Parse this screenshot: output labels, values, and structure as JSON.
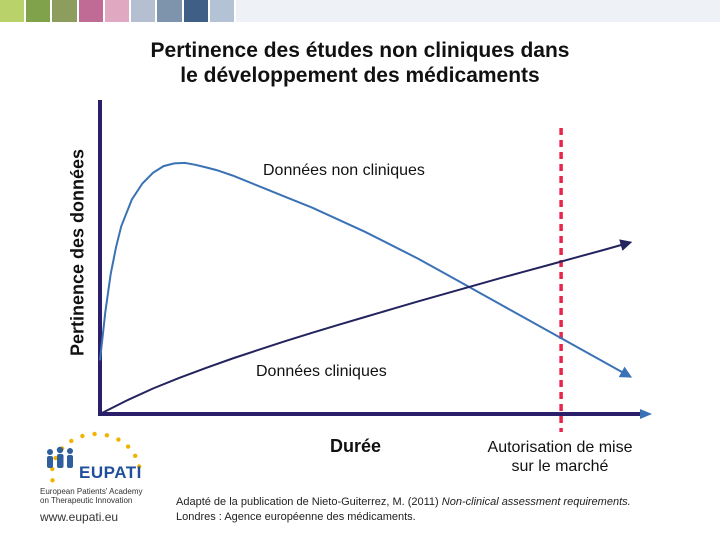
{
  "colors": {
    "axis": "#2b1e6b",
    "nonclinical_curve": "#3a72b5",
    "clinical_curve": "#23235e",
    "marker_line": "#e8264a",
    "brand": "#1f4f9a"
  },
  "header": {
    "swatches": [
      "#b9d36a",
      "#7fa24a",
      "#8d9d5e",
      "#c06b95",
      "#e0a9c1",
      "#b4c0d1",
      "#7e93ac",
      "#3f5f86",
      "#b3c2d4"
    ]
  },
  "chart_data": {
    "type": "line",
    "title": "Pertinence des études non cliniques dans le développement des médicaments",
    "title_line1": "Pertinence des études non cliniques dans",
    "title_line2": "le développement des médicaments",
    "xlabel": "Durée",
    "ylabel": "Pertinence des données",
    "xlim": [
      0,
      100
    ],
    "ylim": [
      0,
      100
    ],
    "grid": false,
    "x_ticks": [],
    "y_ticks": [],
    "series": [
      {
        "name": "Données non cliniques",
        "x": [
          0,
          1,
          2,
          3,
          4,
          6,
          8,
          10,
          12,
          14,
          16,
          18,
          20,
          22,
          25,
          30,
          35,
          40,
          45,
          50,
          55,
          60,
          65,
          70,
          75,
          80,
          85,
          90,
          95,
          100
        ],
        "y": [
          20,
          38,
          52,
          62,
          70,
          80,
          86,
          90,
          92.5,
          93.5,
          93.7,
          93,
          92,
          91,
          89,
          85,
          81,
          77,
          72.5,
          68,
          63,
          58,
          52.5,
          47,
          41.5,
          36,
          30.5,
          25,
          19.5,
          14
        ]
      },
      {
        "name": "Données cliniques",
        "x": [
          0,
          5,
          10,
          15,
          20,
          25,
          30,
          35,
          40,
          45,
          50,
          55,
          60,
          65,
          70,
          75,
          80,
          85,
          90,
          95,
          100
        ],
        "y": [
          0,
          5,
          9.5,
          13.5,
          17.2,
          20.7,
          24,
          27.2,
          30.3,
          33.3,
          36.2,
          39.1,
          42,
          44.8,
          47.6,
          50.4,
          53.1,
          55.8,
          58.5,
          61.2,
          64
        ]
      }
    ],
    "marker": {
      "x": 87,
      "label_line1": "Autorisation de mise",
      "label_line2": "sur le marché",
      "style": "dashed"
    }
  },
  "source": {
    "line1_prefix": "Adapté de la publication de Nieto-Guiterrez, M. (2011) ",
    "line1_italic": "Non-clinical assessment requirements.",
    "line2": "Londres : Agence européenne des médicaments."
  },
  "logo": {
    "brand": "EUPATI",
    "line1": "European Patients' Academy",
    "line2": "on Therapeutic Innovation",
    "url": "www.eupati.eu"
  }
}
